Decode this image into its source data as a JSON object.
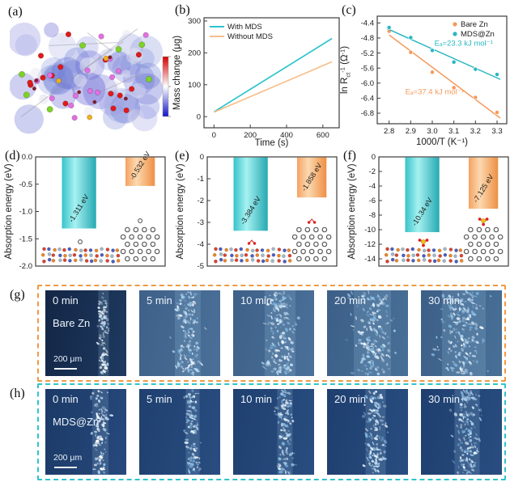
{
  "panel_labels": {
    "a": "(a)",
    "b": "(b)",
    "c": "(c)",
    "d": "(d)",
    "e": "(e)",
    "f": "(f)",
    "g": "(g)",
    "h": "(h)"
  },
  "colors": {
    "teal": "#2ec4cc",
    "orange": "#f09a43"
  },
  "panel_a": {
    "description": "charge-density isosurface structure",
    "isosurface_color": "#7a7fd0",
    "atom_colors": {
      "red": "#e01a1a",
      "pink": "#e26fe2",
      "green": "#7cd226",
      "yellow": "#f0b01e",
      "dark_red": "#8a1d2c"
    },
    "colorbar_colors": [
      "#d40000",
      "#ffffff",
      "#1414c8"
    ]
  },
  "chart_data": [
    {
      "id": "b",
      "type": "line",
      "xlabel": "Time (s)",
      "ylabel": "Mass change (μg)",
      "xticks": [
        "0",
        "200",
        "400",
        "600"
      ],
      "yticks": [
        "0",
        "100",
        "200",
        "300"
      ],
      "xlim": [
        -55,
        690
      ],
      "ylim": [
        -35,
        310
      ],
      "legend": "top-left",
      "series": [
        {
          "name": "With MDS",
          "color": "#2ec4cc",
          "x": [
            0,
            650
          ],
          "y": [
            15,
            245
          ]
        },
        {
          "name": "Without MDS",
          "color": "#f8be8a",
          "x": [
            0,
            650
          ],
          "y": [
            14,
            172
          ]
        }
      ]
    },
    {
      "id": "c",
      "type": "scatter",
      "xlabel": "1000/T (K⁻¹)",
      "ylabel_parts": [
        {
          "t": "ln R"
        },
        {
          "t": "ct",
          "sub": true
        },
        {
          "t": "-1",
          "sup": true
        },
        {
          "t": " (Ω"
        },
        {
          "t": "-1",
          "sup": true
        },
        {
          "t": ")"
        }
      ],
      "xticks": [
        "2.8",
        "2.9",
        "3.0",
        "3.1",
        "3.2",
        "3.3"
      ],
      "yticks": [
        "-4.4",
        "-4.8",
        "-5.2",
        "-5.6",
        "-6.0",
        "-6.4",
        "-6.8"
      ],
      "xlim": [
        2.745,
        3.345
      ],
      "ylim": [
        -7.08,
        -4.22
      ],
      "legend": "top-right",
      "series": [
        {
          "name": "Bare Zn",
          "color": "#f49a5b",
          "x": [
            2.8,
            2.9,
            3.0,
            3.1,
            3.2,
            3.3
          ],
          "y": [
            -4.62,
            -5.18,
            -5.71,
            -6.12,
            -6.38,
            -6.78
          ],
          "fit_x": [
            2.8,
            3.315
          ],
          "fit_y": [
            -4.72,
            -6.93
          ],
          "annotation": {
            "text": "Eₐ=37.4 kJ mol⁻¹",
            "x": 2.875,
            "y": -6.3
          }
        },
        {
          "name": "MDS@Zn",
          "color": "#2ab6c2",
          "x": [
            2.8,
            2.9,
            3.0,
            3.1,
            3.2,
            3.3
          ],
          "y": [
            -4.52,
            -4.79,
            -5.13,
            -5.44,
            -5.63,
            -5.77
          ],
          "fit_x": [
            2.79,
            3.315
          ],
          "fit_y": [
            -4.55,
            -5.9
          ],
          "annotation": {
            "text": "Eₐ=23.3 kJ mol⁻¹",
            "x": 3.01,
            "y": -5.0
          }
        }
      ]
    },
    {
      "id": "d",
      "type": "bar",
      "ylabel": "Absorption energy (eV)",
      "yticks": [
        "0.0",
        "-0.5",
        "-1.0",
        "-1.5",
        "-2.0"
      ],
      "ylim": [
        0,
        -2
      ],
      "bars": [
        {
          "value": -1.311,
          "label": "-1.311 eV",
          "scheme": "teal"
        },
        {
          "value": -0.532,
          "label": "-0.532 eV",
          "scheme": "orange"
        }
      ]
    },
    {
      "id": "e",
      "type": "bar",
      "ylabel": "Absorption energy (eV)",
      "yticks": [
        "0",
        "-1",
        "-2",
        "-3",
        "-4",
        "-5"
      ],
      "ylim": [
        0,
        -5
      ],
      "bars": [
        {
          "value": -3.384,
          "label": "-3.384 eV",
          "scheme": "teal"
        },
        {
          "value": -1.858,
          "label": "-1.858 eV",
          "scheme": "orange"
        }
      ]
    },
    {
      "id": "f",
      "type": "bar",
      "ylabel": "Absorption energy (eV)",
      "yticks": [
        "0",
        "-2",
        "-4",
        "-6",
        "-8",
        "-10",
        "-12",
        "-14"
      ],
      "ylim": [
        0,
        -15
      ],
      "bars": [
        {
          "value": -10.34,
          "label": "-10.34 eV",
          "scheme": "teal"
        },
        {
          "value": -7.125,
          "label": "-7.125 eV",
          "scheme": "orange"
        }
      ]
    }
  ],
  "micrographs": {
    "rows": [
      {
        "id": "g",
        "sample": "Bare Zn",
        "border_color": "#f09a43",
        "scalebar": "200 μm",
        "times": [
          "0 min",
          "5 min",
          "10 min",
          "20 min",
          "30 min"
        ]
      },
      {
        "id": "h",
        "sample": "MDS@Zn",
        "border_color": "#2ec4cc",
        "scalebar": "200 μm",
        "times": [
          "0 min",
          "5 min",
          "10 min",
          "20 min",
          "30 min"
        ]
      }
    ]
  }
}
